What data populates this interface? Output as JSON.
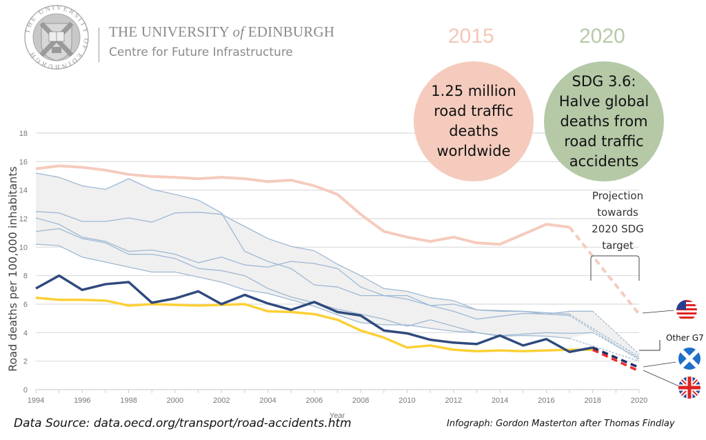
{
  "header": {
    "university_pre": "THE UNIVERSITY ",
    "university_of": "of",
    "university_post": " EDINBURGH",
    "centre": "Centre for Future Infrastructure",
    "seal_ring_text": "THE UNIVERSITY OF EDINBURGH"
  },
  "callouts": {
    "left_year": "2015",
    "left_bubble_lines": [
      "1.25 million",
      "road traffic",
      "deaths",
      "worldwide"
    ],
    "right_year": "2020",
    "right_bubble_lines": [
      "SDG 3.6:",
      "Halve global",
      "deaths from",
      "road traffic",
      "accidents"
    ],
    "colors": {
      "left_year": "#f4c7b6",
      "left_bubble": "#f4cbbd",
      "right_year": "#b7c9a8",
      "right_bubble": "#b5c9a7"
    }
  },
  "annotations": {
    "projection_lines": [
      "Projection",
      "towards",
      "2020 SDG",
      "target"
    ],
    "other_g7": "Other G7"
  },
  "flags": [
    {
      "name": "us-flag-icon",
      "country": "United States"
    },
    {
      "name": "scotland-flag-icon",
      "country": "Scotland"
    },
    {
      "name": "uk-flag-icon",
      "country": "United Kingdom"
    }
  ],
  "footer": {
    "source": "Data Source: data.oecd.org/transport/road-accidents.htm",
    "credit": "Infograph: Gordon Masterton after Thomas Findlay"
  },
  "chart_data": {
    "type": "line",
    "title": "",
    "xlabel": "Year",
    "ylabel": "Road deaths per 100,000 inhabitants",
    "xlim": [
      1994,
      2020
    ],
    "ylim": [
      0,
      18
    ],
    "yticks": [
      0,
      2,
      4,
      6,
      8,
      10,
      12,
      14,
      16,
      18
    ],
    "xticks": [
      1994,
      1996,
      1998,
      2000,
      2002,
      2004,
      2006,
      2008,
      2010,
      2012,
      2014,
      2016,
      2018,
      2020
    ],
    "grid": true,
    "x": [
      1994,
      1995,
      1996,
      1997,
      1998,
      1999,
      2000,
      2001,
      2002,
      2003,
      2004,
      2005,
      2006,
      2007,
      2008,
      2009,
      2010,
      2011,
      2012,
      2013,
      2014,
      2015,
      2016,
      2017,
      2018
    ],
    "series": [
      {
        "name": "United States",
        "color": "#f5cbbd",
        "width": 4,
        "values": [
          15.5,
          15.7,
          15.6,
          15.4,
          15.1,
          14.95,
          14.9,
          14.8,
          14.9,
          14.8,
          14.6,
          14.7,
          14.3,
          13.7,
          12.3,
          11.1,
          10.7,
          10.4,
          10.7,
          10.3,
          10.2,
          10.9,
          11.6,
          11.4,
          null
        ],
        "projection": {
          "from": [
            2017,
            11.4
          ],
          "to": [
            2020,
            5.3
          ]
        }
      },
      {
        "name": "Other G7 A",
        "color": "#9db8d4",
        "width": 1.3,
        "group": "other_g7",
        "values": [
          15.2,
          14.9,
          14.3,
          14.05,
          14.8,
          14.05,
          13.7,
          13.3,
          12.4,
          9.7,
          9.0,
          8.5,
          7.35,
          7.2,
          6.6,
          6.6,
          6.6,
          5.9,
          6.0,
          5.6,
          5.5,
          5.5,
          5.4,
          5.3,
          null
        ],
        "projection": {
          "from": [
            2017,
            5.3
          ],
          "to": [
            2020,
            2.3
          ]
        }
      },
      {
        "name": "Other G7 B",
        "color": "#9db8d4",
        "width": 1.3,
        "group": "other_g7",
        "values": [
          12.5,
          12.4,
          11.8,
          11.8,
          12.05,
          11.75,
          12.4,
          12.45,
          12.3,
          11.45,
          10.6,
          10.05,
          9.75,
          8.8,
          8.0,
          7.1,
          6.9,
          6.45,
          6.25,
          5.6,
          5.55,
          5.5,
          5.3,
          5.5,
          5.5
        ],
        "projection": {
          "from": [
            2018,
            5.5
          ],
          "to": [
            2020,
            2.5
          ]
        }
      },
      {
        "name": "Other G7 C",
        "color": "#9db8d4",
        "width": 1.3,
        "group": "other_g7",
        "values": [
          12.05,
          11.6,
          10.7,
          10.4,
          9.7,
          9.8,
          9.5,
          8.9,
          9.3,
          8.75,
          8.6,
          9.0,
          8.85,
          8.5,
          7.2,
          6.6,
          6.35,
          5.9,
          5.5,
          4.95,
          5.15,
          5.35,
          5.3,
          5.2,
          null
        ],
        "projection": {
          "from": [
            2017,
            5.2
          ],
          "to": [
            2020,
            2.1
          ]
        }
      },
      {
        "name": "Other G7 D",
        "color": "#9db8d4",
        "width": 1.3,
        "group": "other_g7",
        "values": [
          11.1,
          11.3,
          10.6,
          10.3,
          9.5,
          9.5,
          9.2,
          8.5,
          8.35,
          8.0,
          7.1,
          6.5,
          6.1,
          5.65,
          5.3,
          4.95,
          4.45,
          4.9,
          4.45,
          4.0,
          3.8,
          3.9,
          4.0,
          3.95,
          4.0
        ],
        "projection": {
          "from": [
            2018,
            4.0
          ],
          "to": [
            2020,
            2.2
          ]
        }
      },
      {
        "name": "Other G7 E",
        "color": "#9db8d4",
        "width": 1.3,
        "group": "other_g7",
        "values": [
          10.2,
          10.1,
          9.3,
          8.95,
          8.6,
          8.25,
          8.25,
          7.9,
          7.55,
          7.0,
          6.75,
          6.3,
          5.85,
          5.25,
          4.7,
          4.55,
          4.55,
          4.3,
          4.1,
          4.0,
          3.75,
          3.8,
          3.75,
          3.6,
          null
        ],
        "projection": {
          "from": [
            2017,
            3.6
          ],
          "to": [
            2020,
            2.0
          ]
        }
      },
      {
        "name": "Scotland",
        "color": "#2f4a7e",
        "width": 3.5,
        "values": [
          7.1,
          8.0,
          7.0,
          7.4,
          7.55,
          6.1,
          6.4,
          6.9,
          6.0,
          6.65,
          6.05,
          5.6,
          6.15,
          5.45,
          5.2,
          4.15,
          3.95,
          3.5,
          3.3,
          3.2,
          3.8,
          3.1,
          3.55,
          2.65,
          2.95
        ],
        "projection": {
          "from": [
            2018,
            2.95
          ],
          "to": [
            2020,
            1.55
          ],
          "color": "#1f2f66"
        }
      },
      {
        "name": "United Kingdom",
        "color": "#fcd036",
        "width": 3.5,
        "values": [
          6.45,
          6.3,
          6.3,
          6.25,
          5.9,
          6.0,
          5.95,
          5.9,
          5.95,
          6.0,
          5.5,
          5.45,
          5.3,
          4.9,
          4.15,
          3.65,
          2.95,
          3.1,
          2.8,
          2.7,
          2.75,
          2.7,
          2.75,
          2.8,
          2.8
        ],
        "projection": {
          "from": [
            2018,
            2.8
          ],
          "to": [
            2020,
            1.3
          ],
          "color": "#f02a2a"
        }
      }
    ],
    "band": {
      "name": "Other G7 range",
      "color": "#f0f0f0"
    }
  }
}
